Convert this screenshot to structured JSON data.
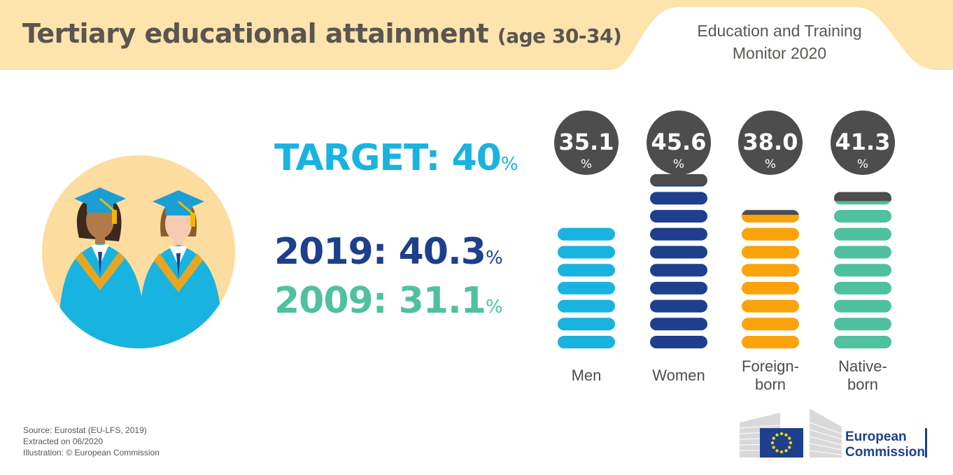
{
  "header": {
    "title": "Tertiary educational attainment",
    "title_sub": "(age 30-34)",
    "monitor_line1": "Education and Training",
    "monitor_line2": "Monitor 2020"
  },
  "stats": {
    "target_label": "TARGET: 40",
    "y2019_label": "2019: 40.3",
    "y2009_label": "2009: 31.1",
    "pct_sign": "%"
  },
  "chart_data": {
    "type": "bar",
    "categories": [
      "Men",
      "Women",
      "Foreign-\nborn",
      "Native-\nborn"
    ],
    "values": [
      35.1,
      45.6,
      38.0,
      41.3
    ],
    "value_labels": [
      "35.1",
      "45.6",
      "38.0",
      "41.3"
    ],
    "unit": "%",
    "colors": [
      "#19b3e0",
      "#1e3f8c",
      "#fba30a",
      "#4fc0a0"
    ],
    "target": 40,
    "target_color": "#4d4d4d"
  },
  "footer": {
    "source": "Source: Eurostat (EU-LFS, 2019)",
    "extracted": "Extracted on 06/2020",
    "illustration": "Illustration: © European Commission"
  },
  "logo": {
    "line1": "European",
    "line2": "Commission"
  },
  "colors": {
    "header_bg": "#fde3ac",
    "illus_circle": "#fddca0",
    "gown": "#19b3e0",
    "cap": "#1a9fd4",
    "tassel": "#f2b705",
    "badge": "#4d4d4d"
  }
}
